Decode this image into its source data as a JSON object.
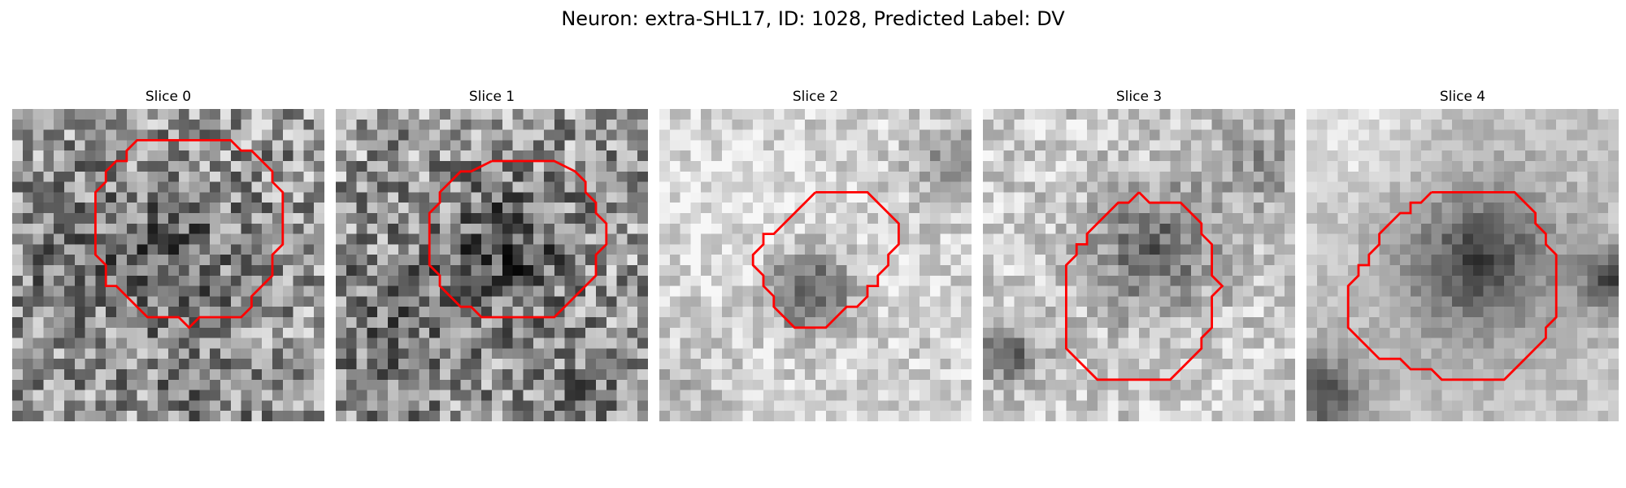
{
  "figure": {
    "title": "Neuron: extra-SHL17, ID: 1028, Predicted Label: DV"
  },
  "contour_color": "#ff0000",
  "panels": [
    {
      "title": "Slice 0",
      "contour": [
        [
          13,
          3
        ],
        [
          21,
          3
        ],
        [
          22,
          4
        ],
        [
          23,
          4
        ],
        [
          25,
          6
        ],
        [
          25,
          7
        ],
        [
          26,
          8
        ],
        [
          26,
          13
        ],
        [
          25,
          14
        ],
        [
          25,
          16
        ],
        [
          23,
          18
        ],
        [
          23,
          19
        ],
        [
          22,
          20
        ],
        [
          18,
          20
        ],
        [
          17,
          21
        ],
        [
          16,
          20
        ],
        [
          13,
          20
        ],
        [
          10,
          17
        ],
        [
          9,
          17
        ],
        [
          9,
          15
        ],
        [
          8,
          14
        ],
        [
          8,
          8
        ],
        [
          9,
          7
        ],
        [
          9,
          6
        ],
        [
          10,
          5
        ],
        [
          11,
          5
        ],
        [
          11,
          4
        ],
        [
          12,
          3
        ]
      ]
    },
    {
      "title": "Slice 1",
      "contour": [
        [
          15,
          5
        ],
        [
          21,
          5
        ],
        [
          23,
          6
        ],
        [
          24,
          7
        ],
        [
          24,
          8
        ],
        [
          25,
          9
        ],
        [
          25,
          10
        ],
        [
          26,
          11
        ],
        [
          26,
          13
        ],
        [
          25,
          14
        ],
        [
          25,
          16
        ],
        [
          22,
          19
        ],
        [
          21,
          20
        ],
        [
          14,
          20
        ],
        [
          13,
          19
        ],
        [
          12,
          19
        ],
        [
          10,
          17
        ],
        [
          10,
          16
        ],
        [
          9,
          15
        ],
        [
          9,
          10
        ],
        [
          10,
          9
        ],
        [
          10,
          8
        ],
        [
          11,
          7
        ],
        [
          12,
          6
        ],
        [
          13,
          6
        ]
      ]
    },
    {
      "title": "Slice 2",
      "contour": [
        [
          15,
          8
        ],
        [
          20,
          8
        ],
        [
          21,
          9
        ],
        [
          22,
          10
        ],
        [
          23,
          11
        ],
        [
          23,
          13
        ],
        [
          22,
          14
        ],
        [
          22,
          15
        ],
        [
          21,
          16
        ],
        [
          21,
          17
        ],
        [
          20,
          17
        ],
        [
          20,
          18
        ],
        [
          19,
          19
        ],
        [
          18,
          19
        ],
        [
          17,
          20
        ],
        [
          16,
          21
        ],
        [
          14,
          21
        ],
        [
          13,
          21
        ],
        [
          12,
          20
        ],
        [
          11,
          19
        ],
        [
          11,
          18
        ],
        [
          10,
          17
        ],
        [
          10,
          16
        ],
        [
          9,
          15
        ],
        [
          9,
          14
        ],
        [
          10,
          13
        ],
        [
          10,
          12
        ],
        [
          11,
          12
        ],
        [
          12,
          11
        ],
        [
          13,
          10
        ],
        [
          14,
          9
        ]
      ]
    },
    {
      "title": "Slice 3",
      "contour": [
        [
          15,
          8
        ],
        [
          16,
          9
        ],
        [
          19,
          9
        ],
        [
          20,
          10
        ],
        [
          21,
          11
        ],
        [
          21,
          12
        ],
        [
          22,
          13
        ],
        [
          22,
          16
        ],
        [
          23,
          17
        ],
        [
          22,
          18
        ],
        [
          22,
          21
        ],
        [
          21,
          22
        ],
        [
          21,
          23
        ],
        [
          19,
          25
        ],
        [
          18,
          26
        ],
        [
          11,
          26
        ],
        [
          9,
          24
        ],
        [
          8,
          23
        ],
        [
          8,
          15
        ],
        [
          9,
          14
        ],
        [
          9,
          13
        ],
        [
          10,
          13
        ],
        [
          10,
          12
        ],
        [
          11,
          11
        ],
        [
          12,
          10
        ],
        [
          13,
          9
        ],
        [
          14,
          9
        ]
      ]
    },
    {
      "title": "Slice 4",
      "contour": [
        [
          12,
          8
        ],
        [
          20,
          8
        ],
        [
          21,
          9
        ],
        [
          22,
          10
        ],
        [
          22,
          11
        ],
        [
          23,
          12
        ],
        [
          23,
          13
        ],
        [
          24,
          14
        ],
        [
          24,
          20
        ],
        [
          23,
          21
        ],
        [
          23,
          22
        ],
        [
          21,
          24
        ],
        [
          19,
          26
        ],
        [
          13,
          26
        ],
        [
          12,
          25
        ],
        [
          10,
          25
        ],
        [
          9,
          24
        ],
        [
          7,
          24
        ],
        [
          6,
          23
        ],
        [
          5,
          22
        ],
        [
          4,
          21
        ],
        [
          4,
          17
        ],
        [
          5,
          16
        ],
        [
          5,
          15
        ],
        [
          6,
          15
        ],
        [
          6,
          14
        ],
        [
          7,
          13
        ],
        [
          7,
          12
        ],
        [
          8,
          11
        ],
        [
          9,
          10
        ],
        [
          10,
          10
        ],
        [
          10,
          9
        ],
        [
          11,
          9
        ]
      ]
    }
  ]
}
